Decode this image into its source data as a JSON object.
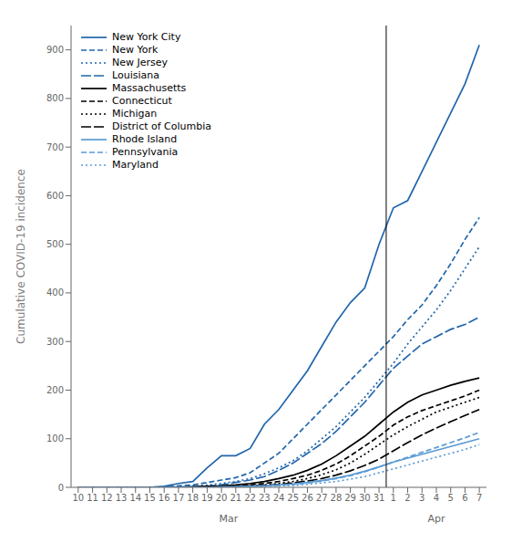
{
  "chart_data": {
    "type": "line",
    "ylabel": "Cumulative COVID-19 incidence",
    "x_groups": [
      {
        "label": "Mar",
        "categories": [
          "10",
          "11",
          "12",
          "13",
          "14",
          "15",
          "16",
          "17",
          "18",
          "19",
          "20",
          "21",
          "22",
          "23",
          "24",
          "25",
          "26",
          "27",
          "28",
          "29",
          "30",
          "31"
        ]
      },
      {
        "label": "Apr",
        "categories": [
          "1",
          "2",
          "3",
          "4",
          "5",
          "6",
          "7"
        ]
      }
    ],
    "ylim": [
      0,
      950
    ],
    "yticks": [
      0,
      100,
      200,
      300,
      400,
      500,
      600,
      700,
      800,
      900
    ],
    "grid": false,
    "legend": "upper left",
    "series": [
      {
        "name": "New York City",
        "color": "#2166ac",
        "line_style": "solid",
        "values": [
          0,
          0,
          0,
          0,
          0,
          0,
          2,
          8,
          12,
          40,
          65,
          65,
          80,
          130,
          160,
          200,
          240,
          290,
          340,
          380,
          410,
          500,
          575,
          590,
          650,
          710,
          770,
          830,
          910
        ]
      },
      {
        "name": "New York",
        "color": "#2166ac",
        "line_style": "dashed",
        "values": [
          0,
          0,
          0,
          0,
          0,
          0,
          1,
          3,
          5,
          10,
          15,
          20,
          30,
          50,
          70,
          100,
          130,
          160,
          190,
          220,
          250,
          280,
          310,
          345,
          375,
          415,
          460,
          510,
          555
        ]
      },
      {
        "name": "New Jersey",
        "color": "#2166ac",
        "line_style": "dotted",
        "values": [
          0,
          0,
          0,
          0,
          0,
          0,
          0,
          1,
          2,
          5,
          8,
          12,
          18,
          28,
          40,
          55,
          75,
          100,
          125,
          155,
          185,
          220,
          255,
          295,
          330,
          365,
          405,
          450,
          495
        ]
      },
      {
        "name": "Louisiana",
        "color": "#2166ac",
        "line_style": "longdash",
        "values": [
          0,
          0,
          0,
          0,
          0,
          0,
          0,
          0,
          1,
          2,
          5,
          10,
          15,
          22,
          35,
          50,
          70,
          90,
          115,
          145,
          175,
          210,
          245,
          270,
          295,
          310,
          325,
          335,
          350
        ]
      },
      {
        "name": "Massachusetts",
        "color": "#000000",
        "line_style": "solid",
        "values": [
          0,
          0,
          0,
          0,
          0,
          0,
          0,
          0,
          1,
          2,
          3,
          5,
          8,
          12,
          18,
          25,
          35,
          48,
          65,
          85,
          105,
          130,
          155,
          175,
          190,
          200,
          210,
          218,
          225
        ]
      },
      {
        "name": "Connecticut",
        "color": "#000000",
        "line_style": "dashed",
        "values": [
          0,
          0,
          0,
          0,
          0,
          0,
          0,
          0,
          0,
          1,
          2,
          3,
          5,
          8,
          12,
          18,
          25,
          35,
          48,
          65,
          85,
          105,
          128,
          145,
          158,
          168,
          178,
          188,
          200
        ]
      },
      {
        "name": "Michigan",
        "color": "#000000",
        "line_style": "dotted",
        "values": [
          0,
          0,
          0,
          0,
          0,
          0,
          0,
          0,
          0,
          0,
          1,
          2,
          3,
          5,
          8,
          12,
          18,
          26,
          36,
          50,
          68,
          88,
          108,
          125,
          140,
          155,
          165,
          175,
          185
        ]
      },
      {
        "name": "District of Columbia",
        "color": "#000000",
        "line_style": "longdash",
        "values": [
          0,
          0,
          0,
          0,
          0,
          0,
          0,
          0,
          0,
          0,
          1,
          2,
          3,
          4,
          6,
          9,
          13,
          18,
          25,
          34,
          45,
          58,
          75,
          92,
          108,
          122,
          135,
          148,
          160
        ]
      },
      {
        "name": "Rhode Island",
        "color": "#5b9bd5",
        "line_style": "solid",
        "values": [
          0,
          0,
          0,
          0,
          0,
          0,
          0,
          0,
          0,
          0,
          1,
          1,
          2,
          3,
          5,
          7,
          10,
          14,
          19,
          25,
          33,
          42,
          52,
          60,
          68,
          76,
          84,
          92,
          100
        ]
      },
      {
        "name": "Pennsylvania",
        "color": "#5b9bd5",
        "line_style": "dashed",
        "values": [
          0,
          0,
          0,
          0,
          0,
          0,
          0,
          0,
          0,
          0,
          0,
          1,
          2,
          3,
          4,
          6,
          9,
          13,
          18,
          24,
          32,
          42,
          52,
          62,
          72,
          82,
          92,
          102,
          113
        ]
      },
      {
        "name": "Maryland",
        "color": "#5b9bd5",
        "line_style": "dotted",
        "values": [
          0,
          0,
          0,
          0,
          0,
          0,
          0,
          0,
          0,
          0,
          0,
          0,
          1,
          2,
          3,
          4,
          6,
          9,
          12,
          17,
          22,
          30,
          38,
          46,
          54,
          62,
          70,
          78,
          88
        ]
      }
    ]
  }
}
